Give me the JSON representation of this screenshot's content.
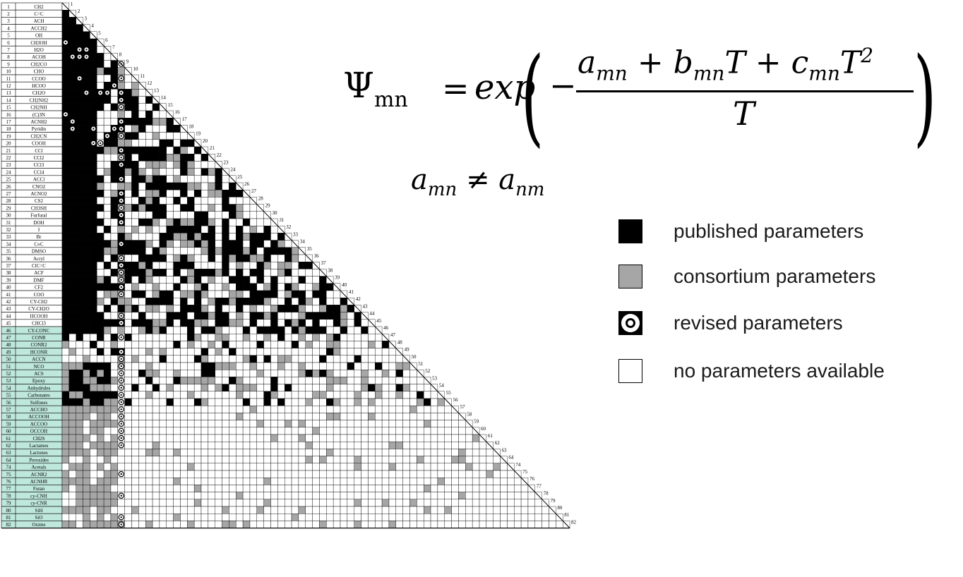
{
  "matrix": {
    "rows": [
      {
        "num": "1",
        "label": "CH2"
      },
      {
        "num": "2",
        "label": "C=C"
      },
      {
        "num": "3",
        "label": "ACH"
      },
      {
        "num": "4",
        "label": "ACCH2"
      },
      {
        "num": "5",
        "label": "OH"
      },
      {
        "num": "6",
        "label": "CH3OH"
      },
      {
        "num": "7",
        "label": "H2O"
      },
      {
        "num": "8",
        "label": "ACOH"
      },
      {
        "num": "9",
        "label": "CH2CO"
      },
      {
        "num": "10",
        "label": "CHO"
      },
      {
        "num": "11",
        "label": "CCOO"
      },
      {
        "num": "12",
        "label": "HCOO"
      },
      {
        "num": "13",
        "label": "CH2O"
      },
      {
        "num": "14",
        "label": "CH2NH2"
      },
      {
        "num": "15",
        "label": "CH2NH"
      },
      {
        "num": "16",
        "label": "(C)3N"
      },
      {
        "num": "17",
        "label": "ACNH2"
      },
      {
        "num": "18",
        "label": "Pyridin"
      },
      {
        "num": "19",
        "label": "CH2CN"
      },
      {
        "num": "20",
        "label": "COOH"
      },
      {
        "num": "21",
        "label": "CCl"
      },
      {
        "num": "22",
        "label": "CCl2"
      },
      {
        "num": "23",
        "label": "CCl3"
      },
      {
        "num": "24",
        "label": "CCl4"
      },
      {
        "num": "25",
        "label": "ACCl"
      },
      {
        "num": "26",
        "label": "CNO2"
      },
      {
        "num": "27",
        "label": "ACNO2"
      },
      {
        "num": "28",
        "label": "CS2"
      },
      {
        "num": "29",
        "label": "CH3SH"
      },
      {
        "num": "30",
        "label": "Furfural"
      },
      {
        "num": "31",
        "label": "DOH"
      },
      {
        "num": "32",
        "label": "I"
      },
      {
        "num": "33",
        "label": "Br"
      },
      {
        "num": "34",
        "label": "C≡C"
      },
      {
        "num": "35",
        "label": "DMSO"
      },
      {
        "num": "36",
        "label": "Acryl"
      },
      {
        "num": "37",
        "label": "ClC=C"
      },
      {
        "num": "38",
        "label": "ACF"
      },
      {
        "num": "39",
        "label": "DMF"
      },
      {
        "num": "40",
        "label": "CF2"
      },
      {
        "num": "41",
        "label": "COO"
      },
      {
        "num": "42",
        "label": "CY-CH2"
      },
      {
        "num": "43",
        "label": "CY-CH2O"
      },
      {
        "num": "44",
        "label": "HCOOH"
      },
      {
        "num": "45",
        "label": "CHCl3"
      },
      {
        "num": "46",
        "label": "CY-CONC"
      },
      {
        "num": "47",
        "label": "CONR"
      },
      {
        "num": "48",
        "label": "CONR2"
      },
      {
        "num": "49",
        "label": "HCONR"
      },
      {
        "num": "50",
        "label": "ACCN"
      },
      {
        "num": "51",
        "label": "NCO"
      },
      {
        "num": "52",
        "label": "ACS"
      },
      {
        "num": "53",
        "label": "Epoxy"
      },
      {
        "num": "54",
        "label": "Anhydrides"
      },
      {
        "num": "55",
        "label": "Carbonates"
      },
      {
        "num": "56",
        "label": "Sulfones"
      },
      {
        "num": "57",
        "label": "ACCHO"
      },
      {
        "num": "58",
        "label": "ACCOOH"
      },
      {
        "num": "59",
        "label": "ACCOO"
      },
      {
        "num": "60",
        "label": "OCCOH"
      },
      {
        "num": "61",
        "label": "CH2S"
      },
      {
        "num": "62",
        "label": "Lactames"
      },
      {
        "num": "63",
        "label": "Lactones"
      },
      {
        "num": "64",
        "label": "Peroxides"
      },
      {
        "num": "74",
        "label": "Acetals"
      },
      {
        "num": "75",
        "label": "ACNR2"
      },
      {
        "num": "76",
        "label": "ACNHR"
      },
      {
        "num": "77",
        "label": "Furan"
      },
      {
        "num": "78",
        "label": "cy-CNH"
      },
      {
        "num": "79",
        "label": "cy-CNR"
      },
      {
        "num": "80",
        "label": "SiH"
      },
      {
        "num": "81",
        "label": "SiO"
      },
      {
        "num": "82",
        "label": "Oxime"
      }
    ],
    "highlight_from_row": 46,
    "highlight_color": "#bfe8dc",
    "colors": {
      "published": "#000000",
      "consortium": "#a6a6a6",
      "none": "#ffffff",
      "grid": "#000000"
    }
  },
  "formula": {
    "psi": "Ψ",
    "psi_subscript": "mn",
    "equals": "=",
    "exp": "exp",
    "minus": "−",
    "numerator": "a_mn + b_mn T + c_mn T²",
    "denominator": "T",
    "inequality": "a_mn ≠ a_nm"
  },
  "legend": {
    "items": [
      {
        "swatch": "black",
        "label": "published parameters"
      },
      {
        "swatch": "grey",
        "label": "consortium parameters"
      },
      {
        "swatch": "revised",
        "label": "revised parameters"
      },
      {
        "swatch": "white",
        "label": "no parameters available"
      }
    ]
  }
}
